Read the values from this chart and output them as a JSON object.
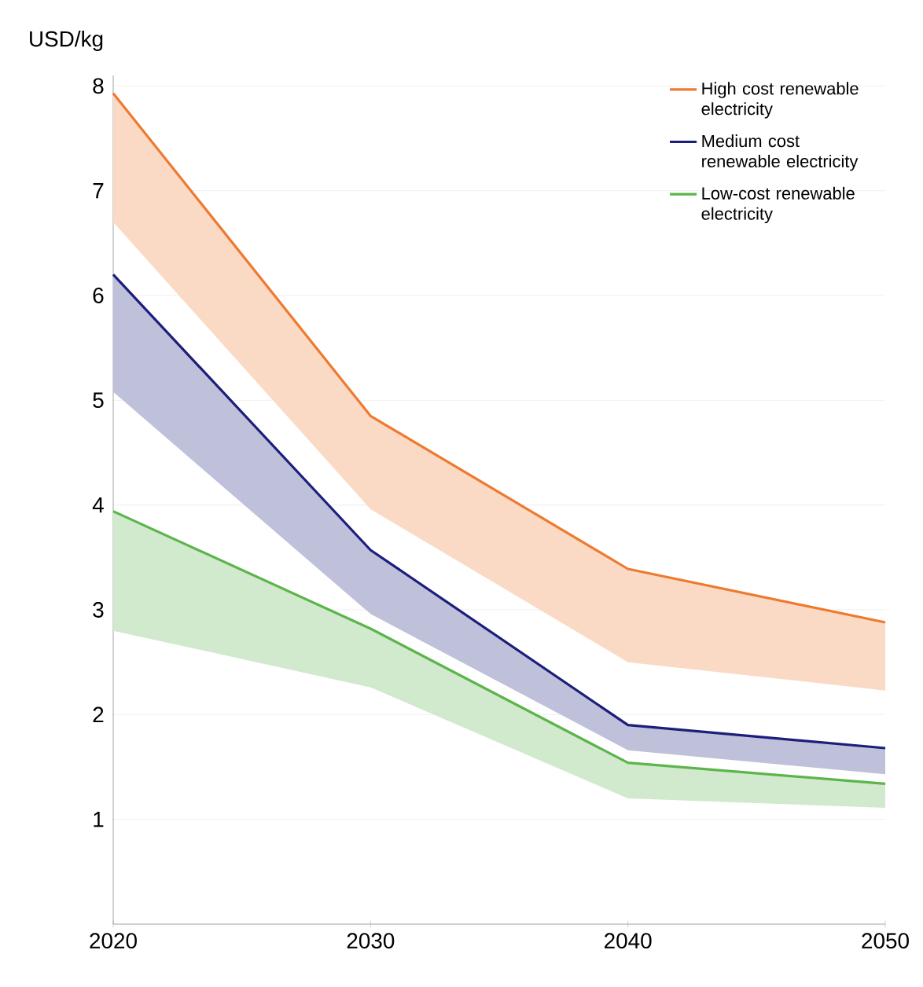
{
  "chart_data": {
    "type": "line",
    "ylabel": "USD/kg",
    "x": [
      2020,
      2030,
      2040,
      2050
    ],
    "xlim": [
      2020,
      2050
    ],
    "xticks": [
      2020,
      2030,
      2040,
      2050
    ],
    "ylim": [
      0,
      8.1
    ],
    "yticks": [
      1,
      2,
      3,
      4,
      5,
      6,
      7,
      8
    ],
    "grid": "y",
    "legend": "top right",
    "marker": "none",
    "line_style": "solid",
    "series": [
      {
        "name": "High cost renewable electricity",
        "color": "#ee7a30",
        "values": [
          7.93,
          4.85,
          3.39,
          2.88
        ],
        "upper": [
          7.93,
          4.85,
          3.39,
          2.88
        ],
        "lower": [
          6.7,
          3.96,
          2.5,
          2.23
        ]
      },
      {
        "name": "Medium cost renewable electricity",
        "color": "#1c1e7c",
        "values": [
          6.2,
          3.57,
          1.9,
          1.68
        ],
        "upper": [
          6.2,
          3.57,
          1.9,
          1.68
        ],
        "lower": [
          5.08,
          2.96,
          1.66,
          1.43
        ]
      },
      {
        "name": "Low-cost renewable electricity",
        "color": "#5cb54c",
        "values": [
          3.94,
          2.82,
          1.54,
          1.34
        ],
        "upper": [
          3.94,
          2.82,
          1.54,
          1.34
        ],
        "lower": [
          2.8,
          2.26,
          1.2,
          1.11
        ]
      }
    ]
  }
}
